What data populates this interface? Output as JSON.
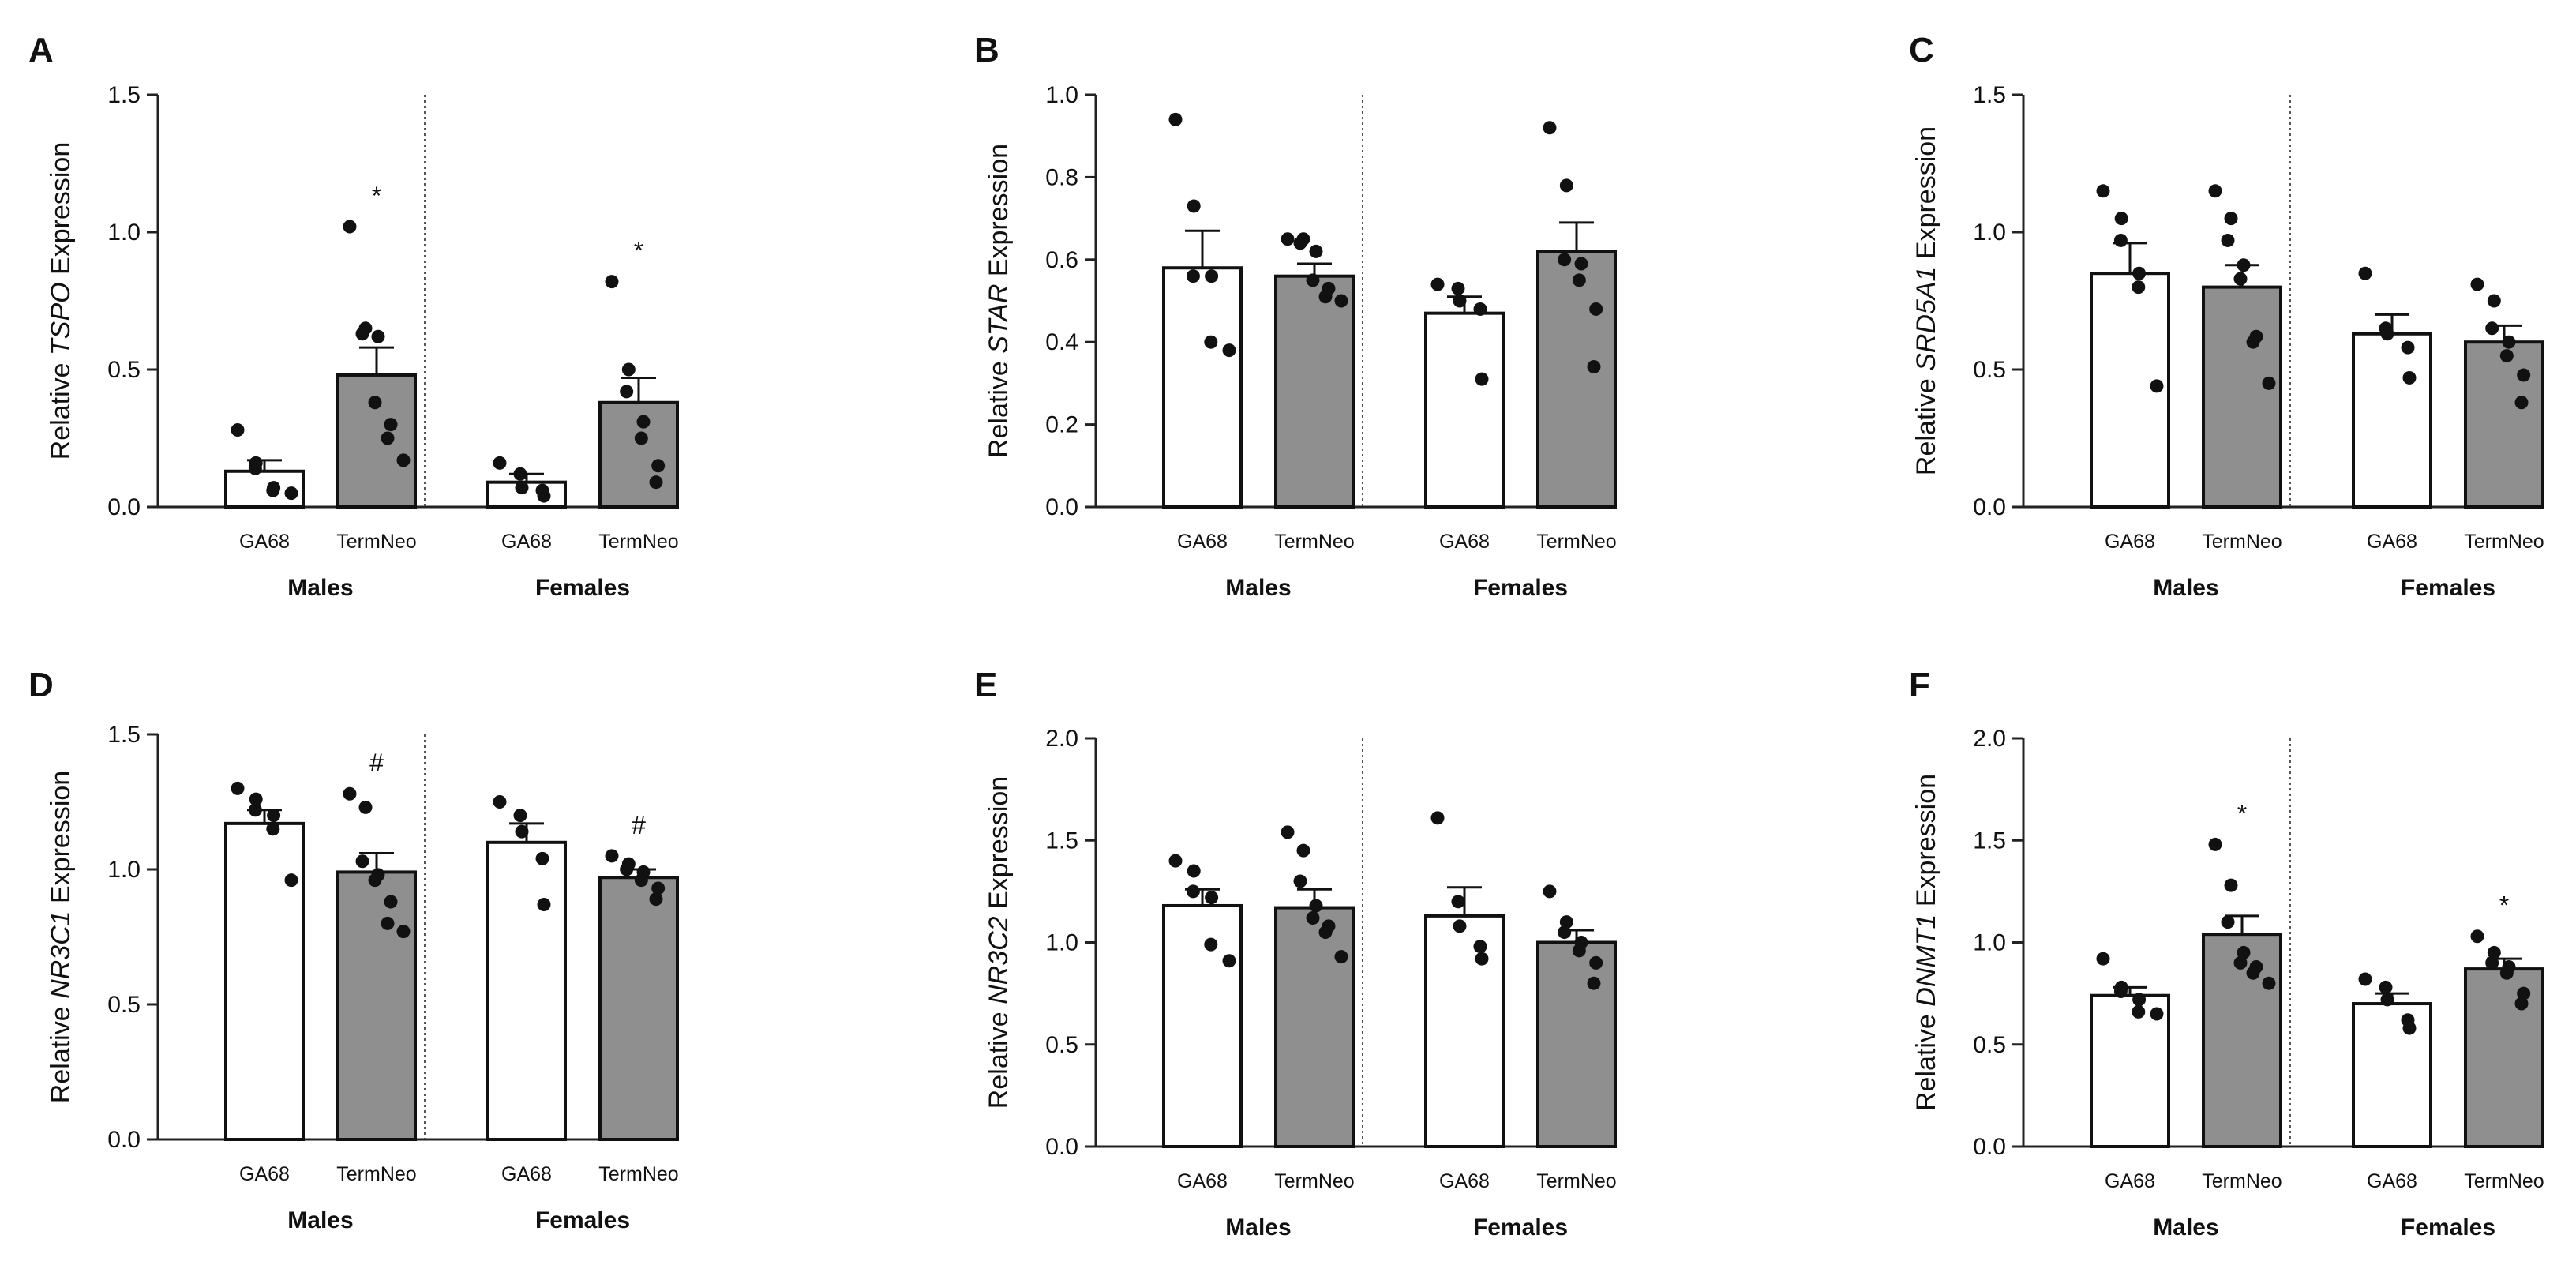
{
  "figure_panels": [
    "A",
    "B",
    "C",
    "D",
    "E",
    "F"
  ],
  "chart_data": [
    {
      "type": "bar",
      "panel": "A",
      "ylabel_prefix": "Relative",
      "ylabel_gene": "TSPO",
      "ylabel_suffix": "Expression",
      "ylim": [
        0,
        1.5
      ],
      "yticks": [
        "0.0",
        "0.5",
        "1.0",
        "1.5"
      ],
      "groups": [
        "Males",
        "Females"
      ],
      "categories": [
        "GA68",
        "TermNeo"
      ],
      "series": [
        {
          "group": "Males",
          "name": "GA68",
          "mean": 0.13,
          "sem": 0.04,
          "points": [
            0.28,
            0.16,
            0.14,
            0.07,
            0.06,
            0.05
          ],
          "marker": ""
        },
        {
          "group": "Males",
          "name": "TermNeo",
          "mean": 0.48,
          "sem": 0.1,
          "points": [
            1.02,
            0.65,
            0.63,
            0.62,
            0.38,
            0.3,
            0.25,
            0.17
          ],
          "marker": "*"
        },
        {
          "group": "Females",
          "name": "GA68",
          "mean": 0.09,
          "sem": 0.03,
          "points": [
            0.16,
            0.12,
            0.07,
            0.06,
            0.04
          ],
          "marker": ""
        },
        {
          "group": "Females",
          "name": "TermNeo",
          "mean": 0.38,
          "sem": 0.09,
          "points": [
            0.82,
            0.5,
            0.42,
            0.31,
            0.25,
            0.15,
            0.09
          ],
          "marker": "*"
        }
      ]
    },
    {
      "type": "bar",
      "panel": "B",
      "ylabel_prefix": "Relative",
      "ylabel_gene": "STAR",
      "ylabel_suffix": "Expression",
      "ylim": [
        0,
        1.0
      ],
      "yticks": [
        "0.0",
        "0.2",
        "0.4",
        "0.6",
        "0.8",
        "1.0"
      ],
      "groups": [
        "Males",
        "Females"
      ],
      "categories": [
        "GA68",
        "TermNeo"
      ],
      "series": [
        {
          "group": "Males",
          "name": "GA68",
          "mean": 0.58,
          "sem": 0.09,
          "points": [
            0.94,
            0.73,
            0.56,
            0.56,
            0.4,
            0.38
          ],
          "marker": ""
        },
        {
          "group": "Males",
          "name": "TermNeo",
          "mean": 0.56,
          "sem": 0.03,
          "points": [
            0.65,
            0.65,
            0.64,
            0.62,
            0.55,
            0.53,
            0.51,
            0.5
          ],
          "marker": ""
        },
        {
          "group": "Females",
          "name": "GA68",
          "mean": 0.47,
          "sem": 0.04,
          "points": [
            0.54,
            0.53,
            0.5,
            0.48,
            0.31
          ],
          "marker": ""
        },
        {
          "group": "Females",
          "name": "TermNeo",
          "mean": 0.62,
          "sem": 0.07,
          "points": [
            0.92,
            0.78,
            0.6,
            0.59,
            0.55,
            0.48,
            0.34
          ],
          "marker": ""
        }
      ]
    },
    {
      "type": "bar",
      "panel": "C",
      "ylabel_prefix": "Relative",
      "ylabel_gene": "SRD5A1",
      "ylabel_suffix": "Expression",
      "ylim": [
        0,
        1.5
      ],
      "yticks": [
        "0.0",
        "0.5",
        "1.0",
        "1.5"
      ],
      "groups": [
        "Males",
        "Females"
      ],
      "categories": [
        "GA68",
        "TermNeo"
      ],
      "series": [
        {
          "group": "Males",
          "name": "GA68",
          "mean": 0.85,
          "sem": 0.11,
          "points": [
            1.15,
            1.05,
            0.97,
            0.85,
            0.8,
            0.44
          ],
          "marker": ""
        },
        {
          "group": "Males",
          "name": "TermNeo",
          "mean": 0.8,
          "sem": 0.08,
          "points": [
            1.15,
            1.05,
            0.97,
            0.88,
            0.83,
            0.62,
            0.6,
            0.45
          ],
          "marker": ""
        },
        {
          "group": "Females",
          "name": "GA68",
          "mean": 0.63,
          "sem": 0.07,
          "points": [
            0.85,
            0.65,
            0.63,
            0.58,
            0.47
          ],
          "marker": ""
        },
        {
          "group": "Females",
          "name": "TermNeo",
          "mean": 0.6,
          "sem": 0.06,
          "points": [
            0.81,
            0.75,
            0.65,
            0.6,
            0.55,
            0.48,
            0.38
          ],
          "marker": ""
        }
      ]
    },
    {
      "type": "bar",
      "panel": "D",
      "ylabel_prefix": "Relative",
      "ylabel_gene": "NR3C1",
      "ylabel_suffix": "Expression",
      "ylim": [
        0,
        1.5
      ],
      "yticks": [
        "0.0",
        "0.5",
        "1.0",
        "1.5"
      ],
      "groups": [
        "Males",
        "Females"
      ],
      "categories": [
        "GA68",
        "TermNeo"
      ],
      "series": [
        {
          "group": "Males",
          "name": "GA68",
          "mean": 1.17,
          "sem": 0.05,
          "points": [
            1.3,
            1.26,
            1.22,
            1.2,
            1.15,
            0.96
          ],
          "marker": ""
        },
        {
          "group": "Males",
          "name": "TermNeo",
          "mean": 0.99,
          "sem": 0.07,
          "points": [
            1.28,
            1.23,
            1.03,
            0.98,
            0.96,
            0.88,
            0.8,
            0.77
          ],
          "marker": "#"
        },
        {
          "group": "Females",
          "name": "GA68",
          "mean": 1.1,
          "sem": 0.07,
          "points": [
            1.25,
            1.2,
            1.14,
            1.04,
            0.87
          ],
          "marker": ""
        },
        {
          "group": "Females",
          "name": "TermNeo",
          "mean": 0.97,
          "sem": 0.03,
          "points": [
            1.05,
            1.02,
            1.0,
            0.99,
            0.96,
            0.93,
            0.89
          ],
          "marker": "#"
        }
      ]
    },
    {
      "type": "bar",
      "panel": "E",
      "ylabel_prefix": "Relative",
      "ylabel_gene": "NR3C2",
      "ylabel_suffix": "Expression",
      "ylim": [
        0,
        2.0
      ],
      "yticks": [
        "0.0",
        "0.5",
        "1.0",
        "1.5",
        "2.0"
      ],
      "groups": [
        "Males",
        "Females"
      ],
      "categories": [
        "GA68",
        "TermNeo"
      ],
      "series": [
        {
          "group": "Males",
          "name": "GA68",
          "mean": 1.18,
          "sem": 0.08,
          "points": [
            1.4,
            1.35,
            1.25,
            1.22,
            0.99,
            0.91
          ],
          "marker": ""
        },
        {
          "group": "Males",
          "name": "TermNeo",
          "mean": 1.17,
          "sem": 0.09,
          "points": [
            1.54,
            1.45,
            1.3,
            1.18,
            1.12,
            1.08,
            1.05,
            0.93
          ],
          "marker": ""
        },
        {
          "group": "Females",
          "name": "GA68",
          "mean": 1.13,
          "sem": 0.14,
          "points": [
            1.61,
            1.2,
            1.08,
            0.98,
            0.92
          ],
          "marker": ""
        },
        {
          "group": "Females",
          "name": "TermNeo",
          "mean": 1.0,
          "sem": 0.06,
          "points": [
            1.25,
            1.1,
            1.05,
            1.0,
            0.96,
            0.9,
            0.8
          ],
          "marker": ""
        }
      ]
    },
    {
      "type": "bar",
      "panel": "F",
      "ylabel_prefix": "Relative",
      "ylabel_gene": "DNMT1",
      "ylabel_suffix": "Expression",
      "ylim": [
        0,
        2.0
      ],
      "yticks": [
        "0.0",
        "0.5",
        "1.0",
        "1.5",
        "2.0"
      ],
      "groups": [
        "Males",
        "Females"
      ],
      "categories": [
        "GA68",
        "TermNeo"
      ],
      "series": [
        {
          "group": "Males",
          "name": "GA68",
          "mean": 0.74,
          "sem": 0.04,
          "points": [
            0.92,
            0.78,
            0.76,
            0.72,
            0.66,
            0.65
          ],
          "marker": ""
        },
        {
          "group": "Males",
          "name": "TermNeo",
          "mean": 1.04,
          "sem": 0.09,
          "points": [
            1.48,
            1.28,
            1.1,
            0.95,
            0.9,
            0.88,
            0.85,
            0.8
          ],
          "marker": "*"
        },
        {
          "group": "Females",
          "name": "GA68",
          "mean": 0.7,
          "sem": 0.05,
          "points": [
            0.82,
            0.78,
            0.72,
            0.62,
            0.58
          ],
          "marker": ""
        },
        {
          "group": "Females",
          "name": "TermNeo",
          "mean": 0.87,
          "sem": 0.05,
          "points": [
            1.03,
            0.95,
            0.9,
            0.88,
            0.85,
            0.75,
            0.7
          ],
          "marker": "*"
        }
      ]
    }
  ]
}
